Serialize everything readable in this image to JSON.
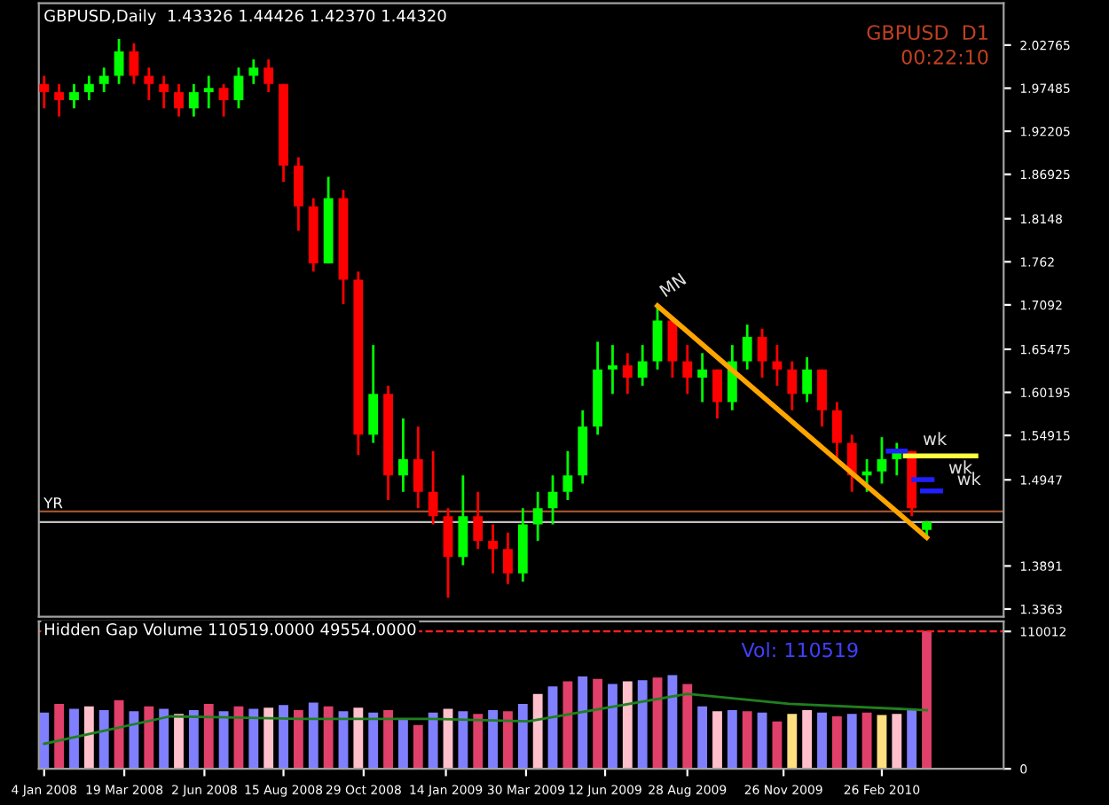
{
  "chart_data": [
    {
      "type": "candlestick",
      "title": "GBPUSD,Daily  1.43326 1.44426 1.42370 1.44320",
      "x": [
        "2008-01-04",
        "2008-01-18",
        "2008-02-01",
        "2008-02-15",
        "2008-02-29",
        "2008-03-14",
        "2008-03-28",
        "2008-04-11",
        "2008-04-25",
        "2008-05-09",
        "2008-05-23",
        "2008-06-06",
        "2008-06-20",
        "2008-07-04",
        "2008-07-18",
        "2008-08-01",
        "2008-08-15",
        "2008-08-29",
        "2008-09-12",
        "2008-09-26",
        "2008-10-10",
        "2008-10-24",
        "2008-11-07",
        "2008-11-21",
        "2008-12-05",
        "2008-12-19",
        "2009-01-02",
        "2009-01-16",
        "2009-01-30",
        "2009-02-13",
        "2009-02-27",
        "2009-03-13",
        "2009-03-27",
        "2009-04-10",
        "2009-04-24",
        "2009-05-08",
        "2009-05-22",
        "2009-06-05",
        "2009-06-19",
        "2009-07-03",
        "2009-07-17",
        "2009-07-31",
        "2009-08-14",
        "2009-08-28",
        "2009-09-11",
        "2009-09-25",
        "2009-10-09",
        "2009-10-23",
        "2009-11-06",
        "2009-11-20",
        "2009-12-04",
        "2009-12-18",
        "2010-01-01",
        "2010-01-15",
        "2010-01-29",
        "2010-02-12",
        "2010-02-26",
        "2010-03-12",
        "2010-03-26",
        "2010-04-09"
      ],
      "ohlc": [
        [
          1.98,
          1.99,
          1.95,
          1.97
        ],
        [
          1.97,
          1.98,
          1.94,
          1.96
        ],
        [
          1.96,
          1.98,
          1.95,
          1.97
        ],
        [
          1.97,
          1.99,
          1.96,
          1.98
        ],
        [
          1.98,
          2.0,
          1.97,
          1.99
        ],
        [
          1.99,
          2.035,
          1.98,
          2.02
        ],
        [
          2.02,
          2.03,
          1.98,
          1.99
        ],
        [
          1.99,
          2.0,
          1.96,
          1.98
        ],
        [
          1.98,
          1.99,
          1.95,
          1.97
        ],
        [
          1.97,
          1.98,
          1.94,
          1.95
        ],
        [
          1.95,
          1.98,
          1.94,
          1.97
        ],
        [
          1.97,
          1.99,
          1.95,
          1.975
        ],
        [
          1.975,
          1.98,
          1.94,
          1.96
        ],
        [
          1.96,
          2.0,
          1.95,
          1.99
        ],
        [
          1.99,
          2.01,
          1.98,
          2.0
        ],
        [
          2.0,
          2.01,
          1.97,
          1.98
        ],
        [
          1.98,
          1.98,
          1.86,
          1.88
        ],
        [
          1.88,
          1.89,
          1.8,
          1.83
        ],
        [
          1.83,
          1.84,
          1.75,
          1.76
        ],
        [
          1.76,
          1.866,
          1.76,
          1.84
        ],
        [
          1.84,
          1.85,
          1.71,
          1.74
        ],
        [
          1.74,
          1.75,
          1.525,
          1.55
        ],
        [
          1.55,
          1.66,
          1.54,
          1.6
        ],
        [
          1.6,
          1.61,
          1.47,
          1.5
        ],
        [
          1.5,
          1.57,
          1.48,
          1.52
        ],
        [
          1.52,
          1.56,
          1.46,
          1.48
        ],
        [
          1.48,
          1.53,
          1.44,
          1.45
        ],
        [
          1.45,
          1.46,
          1.35,
          1.4
        ],
        [
          1.4,
          1.5,
          1.39,
          1.45
        ],
        [
          1.45,
          1.48,
          1.41,
          1.42
        ],
        [
          1.42,
          1.44,
          1.38,
          1.41
        ],
        [
          1.41,
          1.43,
          1.367,
          1.38
        ],
        [
          1.38,
          1.46,
          1.37,
          1.44
        ],
        [
          1.44,
          1.48,
          1.42,
          1.46
        ],
        [
          1.46,
          1.5,
          1.44,
          1.48
        ],
        [
          1.48,
          1.53,
          1.47,
          1.5
        ],
        [
          1.5,
          1.58,
          1.49,
          1.56
        ],
        [
          1.56,
          1.664,
          1.55,
          1.63
        ],
        [
          1.63,
          1.66,
          1.6,
          1.635
        ],
        [
          1.635,
          1.65,
          1.6,
          1.62
        ],
        [
          1.62,
          1.66,
          1.61,
          1.64
        ],
        [
          1.64,
          1.708,
          1.63,
          1.69
        ],
        [
          1.69,
          1.69,
          1.62,
          1.64
        ],
        [
          1.64,
          1.66,
          1.6,
          1.62
        ],
        [
          1.62,
          1.65,
          1.59,
          1.63
        ],
        [
          1.63,
          1.63,
          1.57,
          1.59
        ],
        [
          1.59,
          1.66,
          1.58,
          1.64
        ],
        [
          1.64,
          1.685,
          1.63,
          1.67
        ],
        [
          1.67,
          1.68,
          1.62,
          1.64
        ],
        [
          1.64,
          1.66,
          1.61,
          1.63
        ],
        [
          1.63,
          1.64,
          1.58,
          1.6
        ],
        [
          1.6,
          1.645,
          1.59,
          1.63
        ],
        [
          1.63,
          1.63,
          1.56,
          1.58
        ],
        [
          1.58,
          1.59,
          1.52,
          1.54
        ],
        [
          1.54,
          1.55,
          1.48,
          1.5
        ],
        [
          1.5,
          1.52,
          1.48,
          1.505
        ],
        [
          1.505,
          1.547,
          1.49,
          1.52
        ],
        [
          1.52,
          1.54,
          1.5,
          1.53
        ],
        [
          1.53,
          1.53,
          1.45,
          1.46
        ],
        [
          1.43326,
          1.44426,
          1.4237,
          1.4432
        ]
      ],
      "colors": [
        "#ff0000",
        "#ff0000",
        "#00ff00",
        "#00ff00",
        "#00ff00",
        "#00ff00",
        "#ff0000",
        "#ff0000",
        "#ff0000",
        "#ff0000",
        "#00ff00",
        "#00ff00",
        "#ff0000",
        "#00ff00",
        "#00ff00",
        "#ff0000",
        "#ff0000",
        "#ff0000",
        "#ff0000",
        "#00ff00",
        "#ff0000",
        "#ff0000",
        "#00ff00",
        "#ff0000",
        "#00ff00",
        "#ff0000",
        "#ff0000",
        "#ff0000",
        "#00ff00",
        "#ff0000",
        "#ff0000",
        "#ff0000",
        "#00ff00",
        "#00ff00",
        "#00ff00",
        "#00ff00",
        "#00ff00",
        "#00ff00",
        "#00ff00",
        "#ff0000",
        "#00ff00",
        "#00ff00",
        "#ff0000",
        "#ff0000",
        "#00ff00",
        "#ff0000",
        "#00ff00",
        "#00ff00",
        "#ff0000",
        "#ff0000",
        "#ff0000",
        "#00ff00",
        "#ff0000",
        "#ff0000",
        "#ff0000",
        "#00ff00",
        "#00ff00",
        "#00ff00",
        "#ff0000",
        "#00ff00"
      ],
      "series": [
        {
          "type": "line",
          "color": "#ffa500",
          "x": [
            "2009-07-31",
            "2010-04-09"
          ],
          "values": [
            1.708,
            1.424
          ]
        },
        {
          "type": "line",
          "color": "#2020ff",
          "x": [
            "2010-03-04",
            "2010-03-20"
          ],
          "values": [
            1.53,
            1.53
          ]
        },
        {
          "type": "line",
          "color": "#2020ff",
          "x": [
            "2010-03-28",
            "2010-04-14"
          ],
          "values": [
            1.495,
            1.495
          ]
        },
        {
          "type": "line",
          "color": "#2020ff",
          "x": [
            "2010-04-05",
            "2010-04-22"
          ],
          "values": [
            1.481,
            1.481
          ]
        },
        {
          "type": "line",
          "color": "#ffff40",
          "x": [
            "2010-03-20",
            "2010-05-25"
          ],
          "values": [
            1.524,
            1.524
          ]
        }
      ],
      "ref_lines": [
        {
          "axis": "y",
          "value": 1.456,
          "label": "YR",
          "color": "#a0522d"
        },
        {
          "axis": "y",
          "value": 1.443,
          "label": null,
          "color": "#c0c0c0"
        }
      ],
      "annotations": [
        "GBPUSD  D1",
        "00:22:10",
        {
          "text": "MN",
          "x": "2009-07-31",
          "y": 1.708
        },
        {
          "text": "wk",
          "x": "2010-03-04",
          "y": 1.53
        },
        {
          "text": "wk",
          "x": "2010-03-28",
          "y": 1.495
        },
        {
          "text": "wk",
          "x": "2010-04-05",
          "y": 1.481
        }
      ],
      "xlim": [
        "2007-12-30",
        "2010-06-20"
      ],
      "ylim": [
        1.327,
        2.079
      ],
      "yticks": [
        2.02765,
        1.97485,
        1.92205,
        1.86925,
        1.8148,
        1.762,
        1.7092,
        1.65475,
        1.60195,
        1.54915,
        1.4947,
        1.3891,
        1.3363
      ],
      "tick_labels": "y",
      "grid": false
    },
    {
      "type": "bar",
      "title": "Hidden Gap Volume 110519.0000 49554.0000",
      "x": [
        "2008-01-04",
        "2008-01-18",
        "2008-02-01",
        "2008-02-15",
        "2008-02-29",
        "2008-03-14",
        "2008-03-28",
        "2008-04-11",
        "2008-04-25",
        "2008-05-09",
        "2008-05-23",
        "2008-06-06",
        "2008-06-20",
        "2008-07-04",
        "2008-07-18",
        "2008-08-01",
        "2008-08-15",
        "2008-08-29",
        "2008-09-12",
        "2008-09-26",
        "2008-10-10",
        "2008-10-24",
        "2008-11-07",
        "2008-11-21",
        "2008-12-05",
        "2008-12-19",
        "2009-01-02",
        "2009-01-16",
        "2009-01-30",
        "2009-02-13",
        "2009-02-27",
        "2009-03-13",
        "2009-03-27",
        "2009-04-10",
        "2009-04-24",
        "2009-05-08",
        "2009-05-22",
        "2009-06-05",
        "2009-06-19",
        "2009-07-03",
        "2009-07-17",
        "2009-07-31",
        "2009-08-14",
        "2009-08-28",
        "2009-09-11",
        "2009-09-25",
        "2009-10-09",
        "2009-10-23",
        "2009-11-06",
        "2009-11-20",
        "2009-12-04",
        "2009-12-18",
        "2010-01-01",
        "2010-01-15",
        "2010-01-29",
        "2010-02-12",
        "2010-02-26",
        "2010-03-12",
        "2010-03-26",
        "2010-04-09"
      ],
      "values": [
        45000,
        52000,
        48000,
        50000,
        47000,
        55000,
        46000,
        50000,
        48000,
        44000,
        47000,
        52000,
        46000,
        50000,
        48000,
        49000,
        51000,
        47000,
        53000,
        50000,
        46000,
        49000,
        45000,
        47000,
        40000,
        35000,
        45000,
        48000,
        46000,
        44000,
        47000,
        46000,
        52000,
        60000,
        66000,
        70000,
        74000,
        72000,
        68000,
        70000,
        71000,
        73000,
        75000,
        68000,
        50000,
        46000,
        47000,
        46000,
        45000,
        38000,
        44000,
        47000,
        45000,
        42000,
        44000,
        45000,
        43000,
        44000,
        48000,
        110519
      ],
      "colors": [
        "#8080ff",
        "#e0406a",
        "#8080ff",
        "#ffc0cb",
        "#8080ff",
        "#e0406a",
        "#8080ff",
        "#e0406a",
        "#8080ff",
        "#ffc0cb",
        "#8080ff",
        "#e0406a",
        "#8080ff",
        "#e0406a",
        "#8080ff",
        "#ffc0cb",
        "#8080ff",
        "#e0406a",
        "#8080ff",
        "#e0406a",
        "#8080ff",
        "#ffc0cb",
        "#8080ff",
        "#e0406a",
        "#8080ff",
        "#e0406a",
        "#8080ff",
        "#ffc0cb",
        "#8080ff",
        "#e0406a",
        "#8080ff",
        "#e0406a",
        "#8080ff",
        "#ffc0cb",
        "#8080ff",
        "#e0406a",
        "#8080ff",
        "#e0406a",
        "#8080ff",
        "#ffc0cb",
        "#8080ff",
        "#e0406a",
        "#8080ff",
        "#e0406a",
        "#8080ff",
        "#ffc0cb",
        "#8080ff",
        "#e0406a",
        "#8080ff",
        "#e0406a",
        "#ffe080",
        "#ffc0cb",
        "#8080ff",
        "#e0406a",
        "#8080ff",
        "#e0406a",
        "#ffe080",
        "#ffc0cb",
        "#8080ff",
        "#e0406a"
      ],
      "series": [
        {
          "type": "line",
          "color": "#208020",
          "x": [
            "2008-01-04",
            "2008-05-01",
            "2008-09-01",
            "2009-01-01",
            "2009-04-01",
            "2009-08-28",
            "2009-12-01",
            "2010-04-09"
          ],
          "values": [
            20000,
            42000,
            40000,
            40000,
            38000,
            60000,
            52000,
            47000
          ]
        }
      ],
      "ref_lines": [
        {
          "axis": "y",
          "value": 110012,
          "label": null,
          "color": "#ff2020",
          "line_style": "dashed"
        }
      ],
      "annotations": [
        "Vol: 110519"
      ],
      "xlim": [
        "2007-12-30",
        "2010-06-20"
      ],
      "ylim": [
        0,
        118000
      ],
      "yticks": [
        0,
        110012
      ],
      "xticks": [
        {
          "value": "2008-01-04",
          "label": "4 Jan 2008"
        },
        {
          "value": "2008-03-19",
          "label": "19 Mar 2008"
        },
        {
          "value": "2008-06-02",
          "label": "2 Jun 2008"
        },
        {
          "value": "2008-08-15",
          "label": "15 Aug 2008"
        },
        {
          "value": "2008-10-29",
          "label": "29 Oct 2008"
        },
        {
          "value": "2009-01-14",
          "label": "14 Jan 2009"
        },
        {
          "value": "2009-03-30",
          "label": "30 Mar 2009"
        },
        {
          "value": "2009-06-12",
          "label": "12 Jun 2009"
        },
        {
          "value": "2009-08-28",
          "label": "28 Aug 2009"
        },
        {
          "value": "2009-11-26",
          "label": "26 Nov 2009"
        },
        {
          "value": "2010-02-26",
          "label": "26 Feb 2010"
        }
      ],
      "grid": false
    }
  ]
}
